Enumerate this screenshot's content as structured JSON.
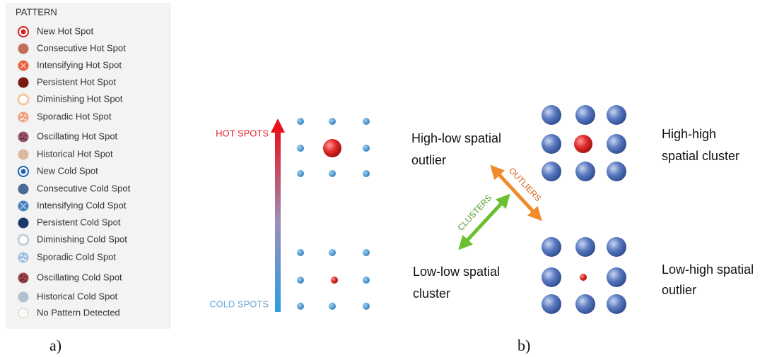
{
  "legend": {
    "title": "PATTERN",
    "items": [
      "New Hot Spot",
      "Consecutive Hot Spot",
      "Intensifying Hot Spot",
      "Persistent Hot Spot",
      "Diminishing Hot Spot",
      "Sporadic Hot Spot",
      "Oscillating Hot Spot",
      "Historical Hot Spot",
      "New Cold Spot",
      "Consecutive Cold Spot",
      "Intensifying Cold Spot",
      "Persistent Cold Spot",
      "Diminishing Cold Spot",
      "Sporadic Cold Spot",
      "Oscillating Cold Spot",
      "Historical Cold Spot",
      "No Pattern Detected"
    ]
  },
  "panel_a": {
    "label": "a)",
    "hot_label": "HOT SPOTS",
    "cold_label": "COLD SPOTS"
  },
  "panel_b": {
    "label": "b)",
    "outliers_label": "OUTLIERS",
    "clusters_label": "CLUSTERS",
    "high_low": [
      "High-low spatial",
      "outlier"
    ],
    "high_high": [
      "High-high",
      "spatial cluster"
    ],
    "low_low": [
      "Low-low spatial",
      "cluster"
    ],
    "low_high": [
      "Low-high spatial",
      "outlier"
    ]
  }
}
